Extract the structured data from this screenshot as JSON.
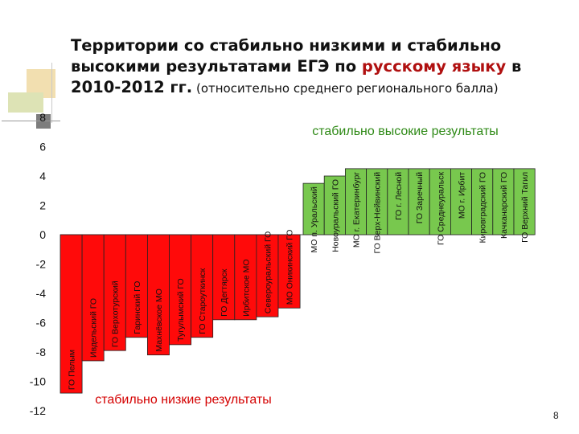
{
  "slide": {
    "title_line1": "Территории со стабильно низкими и стабильно",
    "title_line2_pre": "высокими результатами ЕГЭ по ",
    "title_line2_highlight": "русскому языку",
    "title_line2_post": " в",
    "title_line3_main": "2010-2012 гг.",
    "title_line3_sub": " (относительно среднего регионального балла)",
    "page_number": "8",
    "highlight_color": "#b01010"
  },
  "chart_data": {
    "type": "bar",
    "title": "",
    "xlabel": "",
    "ylabel": "",
    "ylim": [
      -12,
      8
    ],
    "yticks": [
      8,
      6,
      4,
      2,
      0,
      -2,
      -4,
      -6,
      -8,
      -10,
      -12
    ],
    "annotations": {
      "high": "стабильно высокие результаты",
      "low": "стабильно низкие результаты"
    },
    "colors": {
      "high": "#78c84e",
      "low": "#ff0a0a",
      "high_text": "#2f8a17",
      "low_text": "#d40000"
    },
    "categories": [
      "ГО Пелым",
      "Ивдельский ГО",
      "ГО Верхотурский",
      "Гаринский ГО",
      "Махнёвское МО",
      "Тугулымский ГО",
      "ГО Староуткинск",
      "ГО Дегтярск",
      "Ирбитское МО",
      "Североуральский ГО",
      "МО Оникинский ГО",
      "МО п. Уральский",
      "Новоуральский ГО",
      "МО г. Екатеринбург",
      "ГО Верх-Нейвинский",
      "ГО г. Лесной",
      "ГО Заречный",
      "ГО Среднеуральск",
      "МО г. Ирбит",
      "Кировградский ГО",
      "Качканарский ГО",
      "ГО Верхний Тагил"
    ],
    "values": [
      -10.8,
      -8.6,
      -7.9,
      -7.0,
      -8.2,
      -7.5,
      -7.0,
      -5.8,
      -5.8,
      -5.6,
      -5.0,
      3.5,
      4.0,
      4.5,
      4.5,
      4.5,
      4.5,
      4.5,
      4.5,
      4.5,
      4.5,
      4.5
    ],
    "group": [
      "low",
      "low",
      "low",
      "low",
      "low",
      "low",
      "low",
      "low",
      "low",
      "low",
      "low",
      "high",
      "high",
      "high",
      "high",
      "high",
      "high",
      "high",
      "high",
      "high",
      "high",
      "high"
    ]
  }
}
